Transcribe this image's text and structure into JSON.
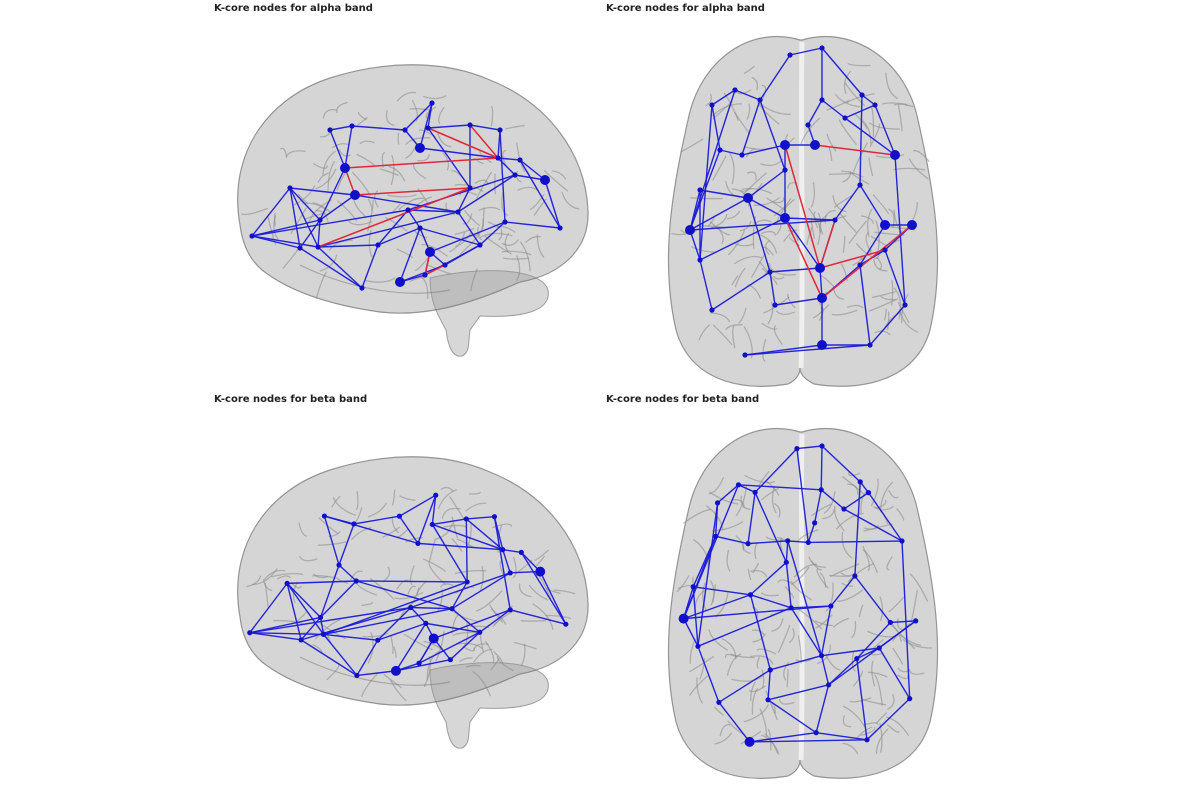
{
  "titles": {
    "alpha_sagittal": "K-core nodes for alpha band",
    "alpha_axial": "K-core nodes for alpha band",
    "beta_sagittal": "K-core nodes for beta band",
    "beta_axial": "K-core nodes for beta band"
  },
  "colors": {
    "edge": "#1a1ad9",
    "node": "#1010c8",
    "kcore_edge": "#e0283a",
    "brain_fill": "#9a9a9a",
    "brain_stroke": "#707070"
  }
}
